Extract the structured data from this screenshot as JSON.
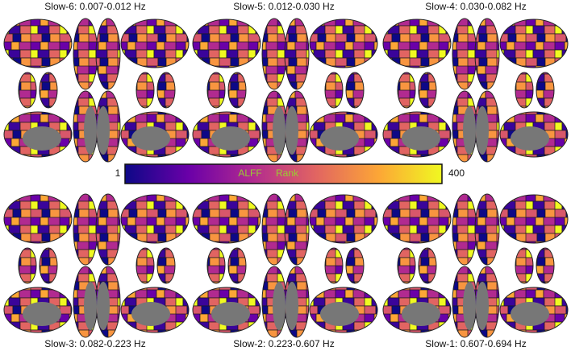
{
  "panels": [
    {
      "title": "Slow-6: 0.007-0.012 Hz"
    },
    {
      "title": "Slow-5: 0.012-0.030 Hz"
    },
    {
      "title": "Slow-4: 0.030-0.082 Hz"
    },
    {
      "title": "Slow-3: 0.082-0.223 Hz"
    },
    {
      "title": "Slow-2: 0.223-0.607 Hz"
    },
    {
      "title": "Slow-1: 0.607-0.694 Hz"
    }
  ],
  "colorbar": {
    "min_label": "1",
    "max_label": "400",
    "label_left": "ALFF",
    "label_right": "Rank"
  }
}
